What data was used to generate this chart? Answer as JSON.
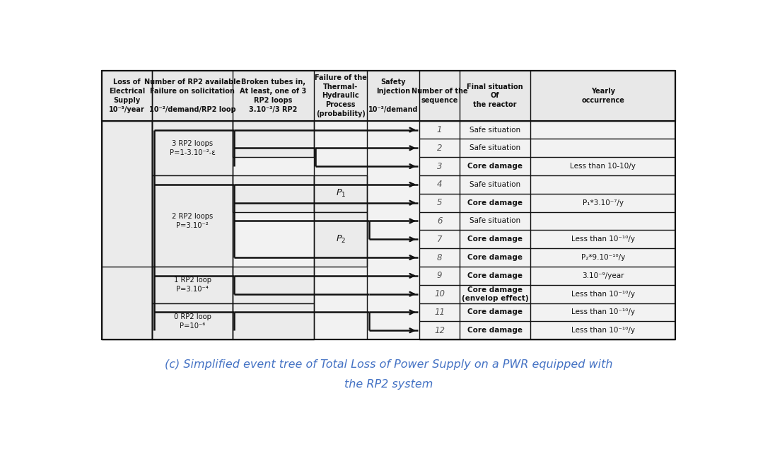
{
  "fig_width": 10.72,
  "fig_height": 6.49,
  "sequences": [
    {
      "num": "1",
      "situation": "Safe situation",
      "bold": false,
      "occurrence": ""
    },
    {
      "num": "2",
      "situation": "Safe situation",
      "bold": false,
      "occurrence": ""
    },
    {
      "num": "3",
      "situation": "Core damage",
      "bold": true,
      "occurrence": "Less than 10-10/y"
    },
    {
      "num": "4",
      "situation": "Safe situation",
      "bold": false,
      "occurrence": ""
    },
    {
      "num": "5",
      "situation": "Core damage",
      "bold": true,
      "occurrence": "P₁*3.10⁻⁷/y"
    },
    {
      "num": "6",
      "situation": "Safe situation",
      "bold": false,
      "occurrence": ""
    },
    {
      "num": "7",
      "situation": "Core damage",
      "bold": true,
      "occurrence": "Less than 10⁻¹⁰/y"
    },
    {
      "num": "8",
      "situation": "Core damage",
      "bold": true,
      "occurrence": "P₂*9.10⁻¹⁰/y"
    },
    {
      "num": "9",
      "situation": "Core damage",
      "bold": true,
      "occurrence": "3.10⁻⁹/year"
    },
    {
      "num": "10",
      "situation": "Core damage\n(envelop effect)",
      "bold": true,
      "occurrence": "Less than 10⁻¹⁰/y"
    },
    {
      "num": "11",
      "situation": "Core damage",
      "bold": true,
      "occurrence": "Less than 10⁻¹⁰/y"
    },
    {
      "num": "12",
      "situation": "Core damage",
      "bold": true,
      "occurrence": "Less than 10⁻¹⁰/y"
    }
  ],
  "rp2_groups": [
    {
      "r1": 1,
      "r2": 3,
      "label": "3 RP2 loops\nP=1-3.10⁻²-ε"
    },
    {
      "r1": 4,
      "r2": 8,
      "label": "2 RP2 loops\nP=3.10⁻²"
    },
    {
      "r1": 9,
      "r2": 10,
      "label": "1 RP2 loop\nP=3.10⁻⁴"
    },
    {
      "r1": 11,
      "r2": 12,
      "label": "0 RP2 loop\nP=10⁻⁶"
    }
  ],
  "header_texts": [
    "Loss of\nElectrical\nSupply\n10⁻⁵/year",
    "Number of RP2 available\nFailure on solicitation\n\n10⁻²/demand/RP2 loop",
    "Broken tubes in,\nAt least, one of 3\nRP2 loops\n3.10⁻³/3 RP2",
    "Failure of the\nThermal-\nHydraulic\nProcess\n(probability)",
    "Safety\nInjection\n\n10⁻³/demand",
    "Number of the\nsequence",
    "Final situation\nOf\nthe reactor",
    "Yearly\noccurrence"
  ],
  "caption_line1": "(c) Simplified event tree of Total Loss of Power Supply on a PWR equipped with",
  "caption_line2": "the RP2 system",
  "caption_color": "#4472C4",
  "caption_fontsize": 11.5
}
